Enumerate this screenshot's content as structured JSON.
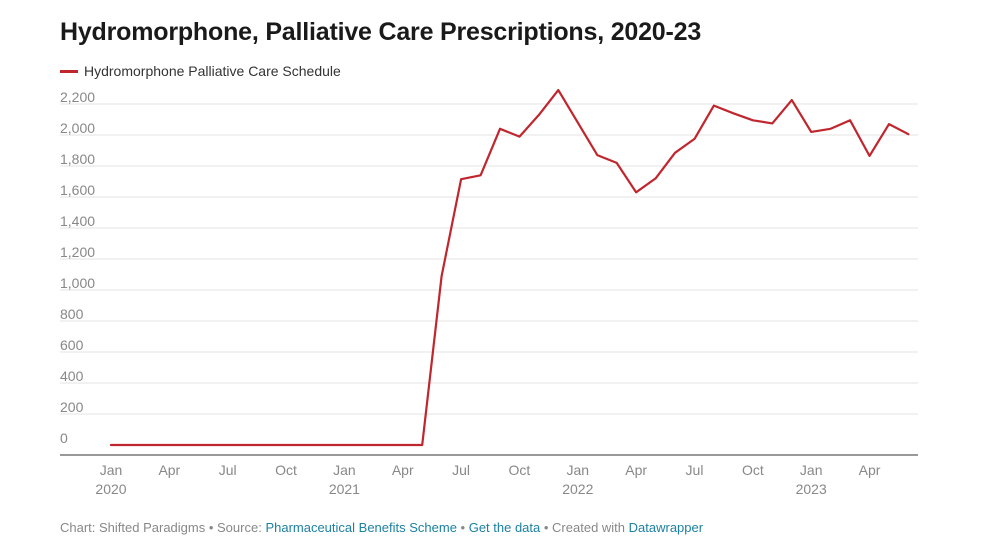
{
  "title": "Hydromorphone, Palliative Care Prescriptions, 2020-23",
  "legend": {
    "label": "Hydromorphone Palliative Care Schedule",
    "color": "#c0262d"
  },
  "footer": {
    "chart_by": "Chart: Shifted Paradigms",
    "sep1": " • ",
    "source_prefix": "Source: ",
    "source_link": "Pharmaceutical Benefits Scheme",
    "sep2": " • ",
    "get_data": "Get the data",
    "sep3": " • ",
    "created_prefix": "Created with ",
    "created_link": "Datawrapper"
  },
  "chart_data": {
    "type": "line",
    "title": "Hydromorphone, Palliative Care Prescriptions, 2020-23",
    "xlabel": "",
    "ylabel": "",
    "ylim": [
      0,
      2200
    ],
    "yticks": [
      0,
      200,
      400,
      600,
      800,
      1000,
      1200,
      1400,
      1600,
      1800,
      2000,
      2200
    ],
    "ytick_labels": [
      "0",
      "200",
      "400",
      "600",
      "800",
      "1,000",
      "1,200",
      "1,400",
      "1,600",
      "1,800",
      "2,000",
      "2,200"
    ],
    "x_start": "2020-01",
    "xticks": [
      {
        "month": "2020-01",
        "label": "Jan",
        "year": "2020"
      },
      {
        "month": "2020-04",
        "label": "Apr",
        "year": ""
      },
      {
        "month": "2020-07",
        "label": "Jul",
        "year": ""
      },
      {
        "month": "2020-10",
        "label": "Oct",
        "year": ""
      },
      {
        "month": "2021-01",
        "label": "Jan",
        "year": "2021"
      },
      {
        "month": "2021-04",
        "label": "Apr",
        "year": ""
      },
      {
        "month": "2021-07",
        "label": "Jul",
        "year": ""
      },
      {
        "month": "2021-10",
        "label": "Oct",
        "year": ""
      },
      {
        "month": "2022-01",
        "label": "Jan",
        "year": "2022"
      },
      {
        "month": "2022-04",
        "label": "Apr",
        "year": ""
      },
      {
        "month": "2022-07",
        "label": "Jul",
        "year": ""
      },
      {
        "month": "2022-10",
        "label": "Oct",
        "year": ""
      },
      {
        "month": "2023-01",
        "label": "Jan",
        "year": "2023"
      },
      {
        "month": "2023-04",
        "label": "Apr",
        "year": ""
      }
    ],
    "grid": true,
    "series": [
      {
        "name": "Hydromorphone Palliative Care Schedule",
        "color": "#c0262d",
        "x": [
          "2020-01",
          "2020-02",
          "2020-03",
          "2020-04",
          "2020-05",
          "2020-06",
          "2020-07",
          "2020-08",
          "2020-09",
          "2020-10",
          "2020-11",
          "2020-12",
          "2021-01",
          "2021-02",
          "2021-03",
          "2021-04",
          "2021-05",
          "2021-06",
          "2021-07",
          "2021-08",
          "2021-09",
          "2021-10",
          "2021-11",
          "2021-12",
          "2022-01",
          "2022-02",
          "2022-03",
          "2022-04",
          "2022-05",
          "2022-06",
          "2022-07",
          "2022-08",
          "2022-09",
          "2022-10",
          "2022-11",
          "2022-12",
          "2023-01",
          "2023-02",
          "2023-03",
          "2023-04",
          "2023-05",
          "2023-06"
        ],
        "values": [
          0,
          0,
          0,
          0,
          0,
          0,
          0,
          0,
          0,
          0,
          0,
          0,
          0,
          0,
          0,
          0,
          0,
          1090,
          1715,
          1740,
          2040,
          1990,
          2130,
          2290,
          2080,
          1870,
          1820,
          1630,
          1720,
          1885,
          1975,
          2190,
          2140,
          2095,
          2075,
          2225,
          2020,
          2040,
          2095,
          1865,
          2070,
          2005
        ]
      }
    ]
  }
}
